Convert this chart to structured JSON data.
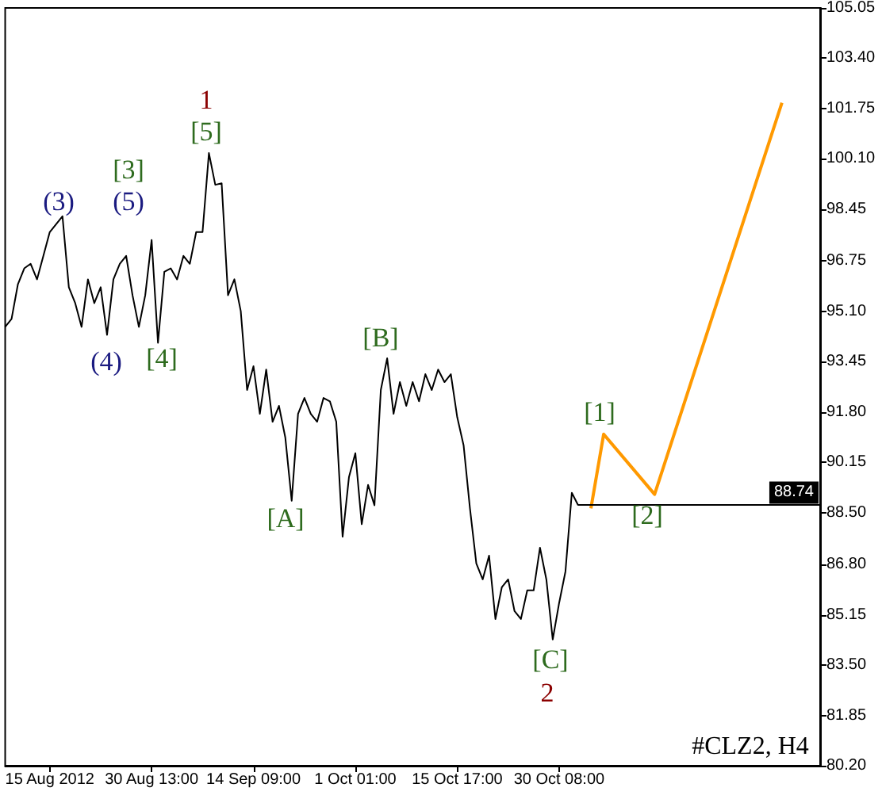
{
  "chart_data": {
    "type": "line",
    "marker": "none",
    "categories": [
      null,
      null,
      null,
      null,
      null,
      null,
      null,
      "15 Aug 2012",
      null,
      null,
      null,
      null,
      null,
      null,
      null,
      null,
      null,
      null,
      null,
      null,
      null,
      null,
      null,
      "30 Aug 13:00",
      null,
      null,
      null,
      null,
      null,
      null,
      null,
      null,
      null,
      null,
      null,
      null,
      null,
      null,
      null,
      "14 Sep 09:00",
      null,
      null,
      null,
      null,
      null,
      null,
      null,
      null,
      null,
      null,
      null,
      null,
      null,
      null,
      null,
      "1 Oct 01:00",
      null,
      null,
      null,
      null,
      null,
      null,
      null,
      null,
      null,
      null,
      null,
      null,
      null,
      null,
      null,
      "15 Oct 17:00",
      null,
      null,
      null,
      null,
      null,
      null,
      null,
      null,
      null,
      null,
      null,
      null,
      null,
      null,
      null,
      "30 Oct 08:00",
      null,
      null,
      null,
      null,
      null,
      null,
      null,
      null,
      null,
      null,
      null,
      null,
      null,
      null,
      null,
      null,
      null,
      null,
      null,
      null,
      null,
      null,
      null,
      null,
      null,
      null,
      null,
      null,
      null,
      null,
      null,
      null,
      null,
      null,
      null,
      null,
      null,
      null,
      null,
      null,
      null
    ],
    "ylim": [
      80.2,
      105.05
    ],
    "yticks": [
      105.05,
      {
        "value": 103.4,
        "label": "103.40"
      },
      101.75,
      {
        "value": 100.1,
        "label": "100.10"
      },
      98.45,
      96.75,
      {
        "value": 95.1,
        "label": "95.10"
      },
      93.45,
      {
        "value": 91.8,
        "label": "91.80"
      },
      90.15,
      {
        "value": 88.5,
        "label": "88.50"
      },
      {
        "value": 86.8,
        "label": "86.80"
      },
      85.15,
      {
        "value": 83.5,
        "label": "83.50"
      },
      81.85,
      {
        "value": 80.2,
        "label": "80.20"
      }
    ],
    "series": [
      {
        "color": "#000000",
        "values": [
          94.59,
          94.85,
          95.99,
          96.51,
          96.66,
          96.15,
          96.92,
          97.7,
          97.96,
          98.22,
          95.89,
          95.37,
          94.59,
          96.15,
          95.37,
          95.89,
          94.33,
          96.15,
          96.66,
          96.92,
          95.63,
          94.59,
          95.63,
          97.44,
          94.07,
          96.4,
          96.51,
          96.15,
          96.92,
          96.66,
          97.7,
          97.7,
          100.29,
          99.25,
          99.3,
          95.63,
          96.15,
          95.11,
          92.52,
          93.3,
          91.74,
          93.19,
          91.48,
          92.0,
          90.96,
          88.89,
          91.74,
          92.26,
          91.74,
          91.48,
          92.26,
          92.15,
          91.48,
          87.71,
          89.67,
          90.45,
          88.12,
          89.41,
          88.74,
          92.52,
          93.56,
          91.74,
          92.78,
          92.0,
          92.78,
          92.15,
          93.04,
          92.52,
          93.19,
          92.78,
          93.04,
          91.63,
          90.71,
          88.64,
          86.83,
          86.31,
          87.09,
          85.01,
          86.05,
          86.31,
          85.27,
          85.01,
          85.95,
          85.95,
          87.35,
          86.31,
          84.34,
          85.53,
          86.57,
          89.15,
          88.74,
          null,
          null,
          null,
          null,
          null,
          null,
          null,
          null,
          null,
          null,
          null,
          null,
          null,
          null,
          null,
          null,
          null,
          null,
          null,
          null,
          null,
          null,
          null,
          null,
          null,
          null,
          null,
          null,
          null,
          null,
          null,
          null,
          null,
          null,
          null,
          null,
          null,
          null
        ]
      },
      {
        "color": "#ff9900",
        "values": [
          null,
          null,
          null,
          null,
          null,
          null,
          null,
          null,
          null,
          null,
          null,
          null,
          null,
          null,
          null,
          null,
          null,
          null,
          null,
          null,
          null,
          null,
          null,
          null,
          null,
          null,
          null,
          null,
          null,
          null,
          null,
          null,
          null,
          null,
          null,
          null,
          null,
          null,
          null,
          null,
          null,
          null,
          null,
          null,
          null,
          null,
          null,
          null,
          null,
          null,
          null,
          null,
          null,
          null,
          null,
          null,
          null,
          null,
          null,
          null,
          null,
          null,
          null,
          null,
          null,
          null,
          null,
          null,
          null,
          null,
          null,
          null,
          null,
          null,
          null,
          null,
          null,
          null,
          null,
          null,
          null,
          null,
          null,
          null,
          null,
          null,
          null,
          null,
          null,
          null,
          null,
          null,
          88.64,
          null,
          91.07,
          null,
          null,
          null,
          null,
          null,
          null,
          null,
          89.1,
          null,
          null,
          null,
          null,
          null,
          null,
          null,
          null,
          null,
          null,
          null,
          null,
          null,
          null,
          null,
          null,
          null,
          null,
          null,
          101.94,
          null,
          null,
          null,
          null,
          null,
          null
        ]
      }
    ],
    "ref_lines": [
      {
        "axis": "y",
        "value": 88.74,
        "label": "88.74",
        "color": "#000000"
      }
    ],
    "annotations": [
      "(3)",
      "[3]",
      "(5)",
      "1",
      "[5]",
      "(4)",
      "[4]",
      "[A]",
      "[B]",
      "[C]",
      "2",
      "[1]",
      "[2]",
      "#CLZ2, H4"
    ]
  }
}
